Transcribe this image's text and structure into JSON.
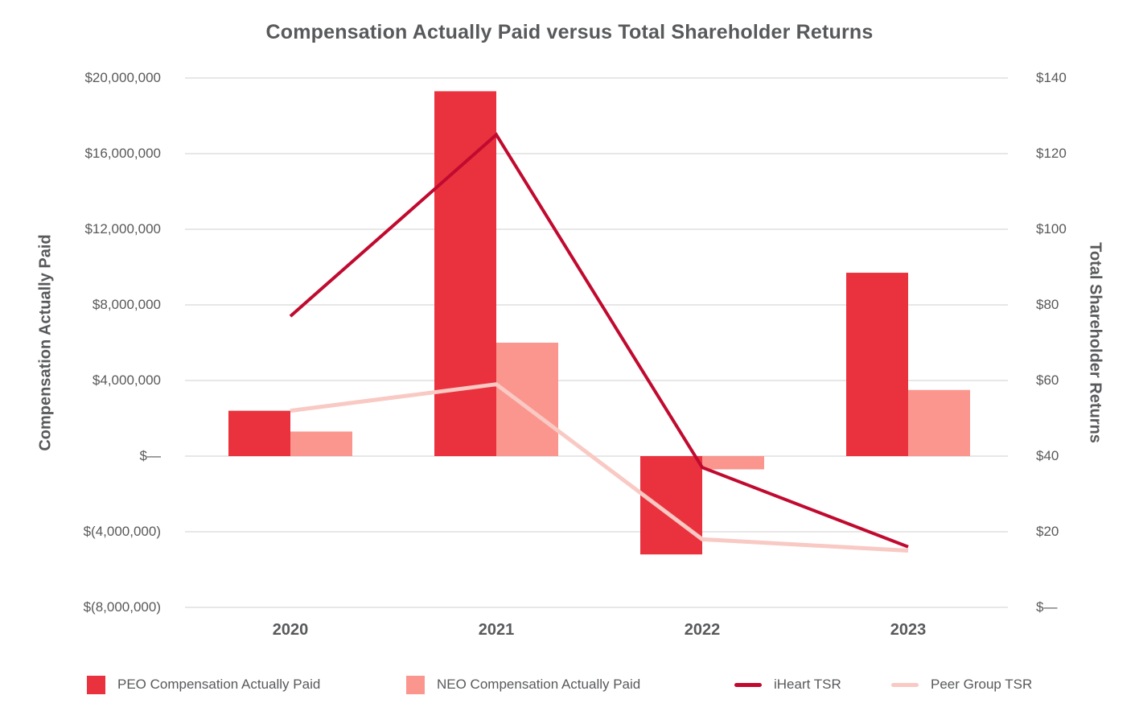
{
  "title": "Compensation Actually Paid versus Total Shareholder Returns",
  "left_axis": {
    "title": "Compensation Actually Paid",
    "ticks": [
      "$20,000,000",
      "$16,000,000",
      "$12,000,000",
      "$8,000,000",
      "$4,000,000",
      "$—",
      "$(4,000,000)",
      "$(8,000,000)"
    ]
  },
  "right_axis": {
    "title": "Total Shareholder Returns",
    "ticks": [
      "$140",
      "$120",
      "$100",
      "$80",
      "$60",
      "$40",
      "$20",
      "$—"
    ]
  },
  "x_axis": {
    "categories": [
      "2020",
      "2021",
      "2022",
      "2023"
    ]
  },
  "legend": [
    {
      "label": "PEO Compensation Actually Paid",
      "swatch": "square",
      "color": "#EA323E"
    },
    {
      "label": "NEO Compensation Actually Paid",
      "swatch": "square",
      "color": "#FA968E"
    },
    {
      "label": "iHeart TSR",
      "swatch": "line",
      "color": "#C00A2F"
    },
    {
      "label": "Peer Group TSR",
      "swatch": "line",
      "color": "#F9C9C4"
    }
  ],
  "colors": {
    "peo_bar": "#EA323E",
    "neo_bar": "#FA968E",
    "iheart_line": "#C00A2F",
    "peer_line": "#F9C9C4",
    "gridline": "#E7E7E7",
    "axis_text": "#595959",
    "title_text": "#58595b"
  },
  "chart_data": {
    "type": "bar",
    "subtype": "grouped-bar-with-lines-combo",
    "title": "Compensation Actually Paid versus Total Shareholder Returns",
    "categories": [
      "2020",
      "2021",
      "2022",
      "2023"
    ],
    "bar_series": [
      {
        "name": "PEO Compensation Actually Paid",
        "axis": "left",
        "color": "#EA323E",
        "values": [
          2400000,
          19300000,
          -5200000,
          9700000
        ]
      },
      {
        "name": "NEO Compensation Actually Paid",
        "axis": "left",
        "color": "#FA968E",
        "values": [
          1300000,
          6000000,
          -700000,
          3500000
        ]
      }
    ],
    "line_series": [
      {
        "name": "iHeart TSR",
        "axis": "right",
        "color": "#C00A2F",
        "values": [
          77,
          125,
          37,
          16
        ]
      },
      {
        "name": "Peer Group TSR",
        "axis": "right",
        "color": "#F9C9C4",
        "values": [
          52,
          59,
          18,
          15
        ]
      }
    ],
    "left_ylabel": "Compensation Actually Paid",
    "right_ylabel": "Total Shareholder Returns",
    "left_ylim": [
      -8000000,
      20000000
    ],
    "left_tick_step": 4000000,
    "right_ylim": [
      0,
      140
    ],
    "right_tick_step": 20,
    "grid": true,
    "legend_position": "bottom"
  }
}
